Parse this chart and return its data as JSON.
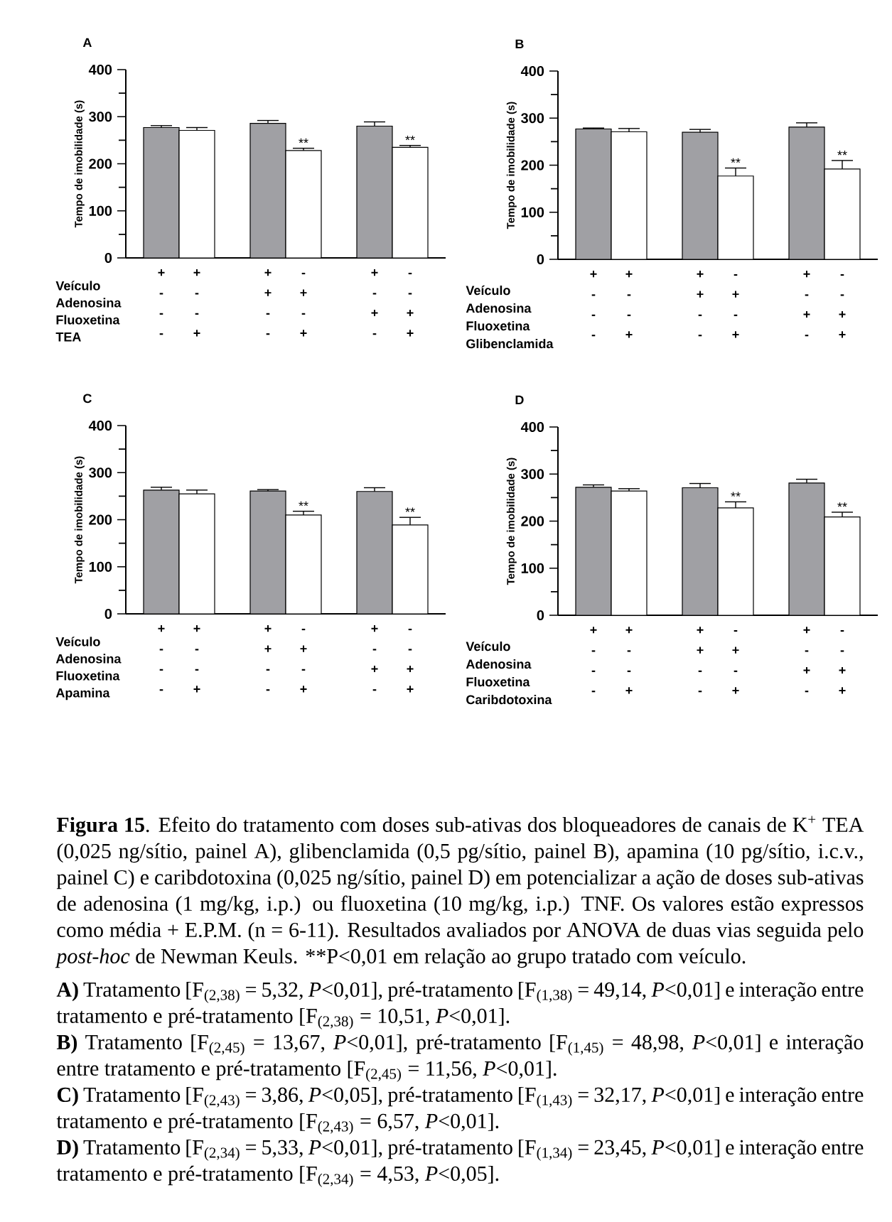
{
  "chart_data": [
    {
      "type": "bar",
      "title": "A",
      "ylabel": "Tempo de imobilidade (s)",
      "categories": [
        "+ - - -",
        "+ - - +",
        "+ + - -",
        "- + - +",
        "+ - + -",
        "- - + +"
      ],
      "values": [
        277,
        271,
        286,
        228,
        280,
        235
      ],
      "colors": [
        "#a0a0a4",
        "#ffffff",
        "#a0a0a4",
        "#ffffff",
        "#a0a0a4",
        "#ffffff"
      ],
      "errors": [
        [
          277,
          281
        ],
        [
          271,
          277
        ],
        [
          286,
          292
        ],
        [
          228,
          233
        ],
        [
          280,
          289
        ],
        [
          235,
          239
        ]
      ],
      "value_labels": [
        null,
        null,
        null,
        "**",
        null,
        "**"
      ],
      "ylim": [
        0,
        400
      ],
      "yticks": [
        0,
        100,
        200,
        300,
        400
      ],
      "annotations": [
        "Veículo",
        "Adenosina",
        "Fluoxetina",
        "TEA"
      ]
    },
    {
      "type": "bar",
      "title": "B",
      "ylabel": "Tempo de imobilidade (s)",
      "categories": [
        "+ - - -",
        "+ - - +",
        "+ + - -",
        "- + - +",
        "+ - + -",
        "- - + +"
      ],
      "values": [
        277,
        271,
        270,
        177,
        281,
        192
      ],
      "colors": [
        "#a0a0a4",
        "#ffffff",
        "#a0a0a4",
        "#ffffff",
        "#a0a0a4",
        "#ffffff"
      ],
      "errors": [
        [
          277,
          279
        ],
        [
          271,
          278
        ],
        [
          270,
          276
        ],
        [
          177,
          194
        ],
        [
          281,
          290
        ],
        [
          192,
          210
        ]
      ],
      "value_labels": [
        null,
        null,
        null,
        "**",
        null,
        "**"
      ],
      "ylim": [
        0,
        400
      ],
      "yticks": [
        0,
        100,
        200,
        300,
        400
      ],
      "annotations": [
        "Veículo",
        "Adenosina",
        "Fluoxetina",
        "Glibenclamida"
      ]
    },
    {
      "type": "bar",
      "title": "C",
      "ylabel": "Tempo de imobilidade (s)",
      "categories": [
        "+ - - -",
        "+ - - +",
        "+ + - -",
        "- + - +",
        "+ - + -",
        "- - + +"
      ],
      "values": [
        263,
        255,
        261,
        210,
        260,
        189
      ],
      "colors": [
        "#a0a0a4",
        "#ffffff",
        "#a0a0a4",
        "#ffffff",
        "#a0a0a4",
        "#ffffff"
      ],
      "errors": [
        [
          263,
          269
        ],
        [
          255,
          263
        ],
        [
          261,
          264
        ],
        [
          210,
          218
        ],
        [
          260,
          268
        ],
        [
          189,
          205
        ]
      ],
      "value_labels": [
        null,
        null,
        null,
        "**",
        null,
        "**"
      ],
      "ylim": [
        0,
        400
      ],
      "yticks": [
        0,
        100,
        200,
        300,
        400
      ],
      "annotations": [
        "Veículo",
        "Adenosina",
        "Fluoxetina",
        "Apamina"
      ]
    },
    {
      "type": "bar",
      "title": "D",
      "ylabel": "Tempo de imobilidade (s)",
      "categories": [
        "+ - - -",
        "+ - - +",
        "+ + - -",
        "- + - +",
        "+ - + -",
        "- - + +"
      ],
      "values": [
        272,
        264,
        271,
        228,
        281,
        209
      ],
      "colors": [
        "#a0a0a4",
        "#ffffff",
        "#a0a0a4",
        "#ffffff",
        "#a0a0a4",
        "#ffffff"
      ],
      "errors": [
        [
          272,
          277
        ],
        [
          264,
          269
        ],
        [
          271,
          280
        ],
        [
          228,
          241
        ],
        [
          281,
          289
        ],
        [
          209,
          219
        ]
      ],
      "value_labels": [
        null,
        null,
        null,
        "**",
        null,
        "**"
      ],
      "ylim": [
        0,
        400
      ],
      "yticks": [
        0,
        100,
        200,
        300,
        400
      ],
      "annotations": [
        "Veículo",
        "Adenosina",
        "Fluoxetina",
        "Caribdotoxina",
        "**Figura 15**. Efeito do tratamento com doses sub-ativas dos bloqueadores de canais de K$^{+}$ TEA (0,025 ng/sítio, painel A), glibenclamida (0,5 pg/sítio, painel B), apamina (10 pg/sítio, i.c.v., painel C) e caribdotoxina (0,025 ng/sítio, painel D) em potencializar a ação de doses sub-ativas de adenosina (1 mg/kg, i.p.) ou fluoxetina (10 mg/kg, i.p.) TNF. Os valores estão expressos como média + E.P.M. (n = 6-11). Resultados avaliados por ANOVA de duas vias seguida pelo *post-hoc* de Newman Keuls.",
        "**P<0,01 em relação ao grupo tratado com veículo.",
        "**A)** Tratamento [F$_{(2,38)}$ = 5,32, *P*<0,01], pré-tratamento [F$_{(1,38)}$ = 49,14, *P*<0,01] e interação entre tratamento e pré-tratamento [F$_{(2,38)}$ = 10,51, *P*<0,01].",
        "**B)** Tratamento [F$_{(2,45)}$ = 13,67, *P*<0,01], pré-tratamento [F$_{(1,45)}$ = 48,98, *P*<0,01] e interação entre tratamento e pré-tratamento [F$_{(2,45)}$ = 11,56, *P*<0,01].",
        "**C)** Tratamento [F$_{(2,43)}$ = 3,86, *P*<0,05], pré-tratamento [F$_{(1,43)}$ = 32,17, *P*<0,01] e interação entre tratamento e pré-tratamento [F$_{(2,43)}$ = 6,57, *P*<0,01].",
        "**D)** Tratamento [F$_{(2,34)}$ = 5,33, *P*<0,01], pré-tratamento [F$_{(1,34)}$ = 23,45, *P*<0,01] e interação entre tratamento e pré-tratamento [F$_{(2,34)}$ = 4,53, *P*<0,05]."
      ]
    }
  ]
}
